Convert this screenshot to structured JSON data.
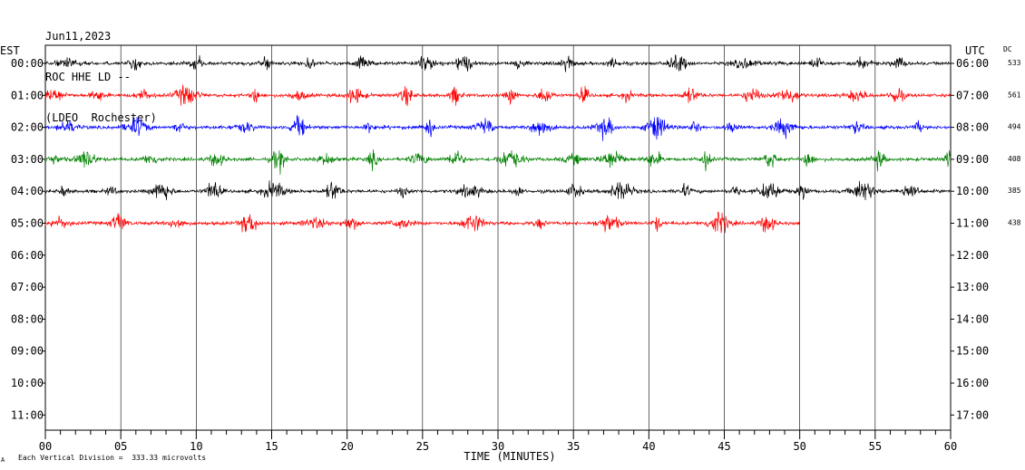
{
  "header": {
    "date": "Jun11,2023",
    "station": "ROC HHE LD --",
    "network": "(LDEO  Rochester)"
  },
  "labels": {
    "left_tz": "EST",
    "right_tz": "UTC",
    "dc_header": "DC",
    "footer_note": "Each Vertical Division =  333.33 microvolts",
    "footer_mark": "A"
  },
  "colors": {
    "background": "#ffffff",
    "axis": "#000000",
    "grid": "#000000",
    "traces": [
      "#000000",
      "#ff0000",
      "#0000ff",
      "#008000"
    ]
  },
  "chart_data": {
    "type": "line",
    "title": "ROC HHE LD --",
    "xlabel": "TIME (MINUTES)",
    "ylabel": "",
    "xlim": [
      0,
      60
    ],
    "x_tick_labels": [
      "00",
      "05",
      "10",
      "15",
      "20",
      "25",
      "30",
      "35",
      "40",
      "45",
      "50",
      "55",
      "60"
    ],
    "y_left_labels": [
      "00:00",
      "01:00",
      "02:00",
      "03:00",
      "04:00",
      "05:00",
      "06:00",
      "07:00",
      "08:00",
      "09:00",
      "10:00",
      "11:00"
    ],
    "y_right_labels": [
      "06:00",
      "07:00",
      "08:00",
      "09:00",
      "10:00",
      "11:00",
      "12:00",
      "13:00",
      "14:00",
      "15:00",
      "16:00",
      "17:00"
    ],
    "grid": "vertical every 5 minutes",
    "series": [
      {
        "row": 0,
        "color": "#000000",
        "dc": "533",
        "end_minute": 60
      },
      {
        "row": 1,
        "color": "#ff0000",
        "dc": "561",
        "end_minute": 60
      },
      {
        "row": 2,
        "color": "#0000ff",
        "dc": "494",
        "end_minute": 60
      },
      {
        "row": 3,
        "color": "#008000",
        "dc": "408",
        "end_minute": 60
      },
      {
        "row": 4,
        "color": "#000000",
        "dc": "385",
        "end_minute": 60
      },
      {
        "row": 5,
        "color": "#ff0000",
        "dc": "438",
        "end_minute": 50
      }
    ]
  }
}
